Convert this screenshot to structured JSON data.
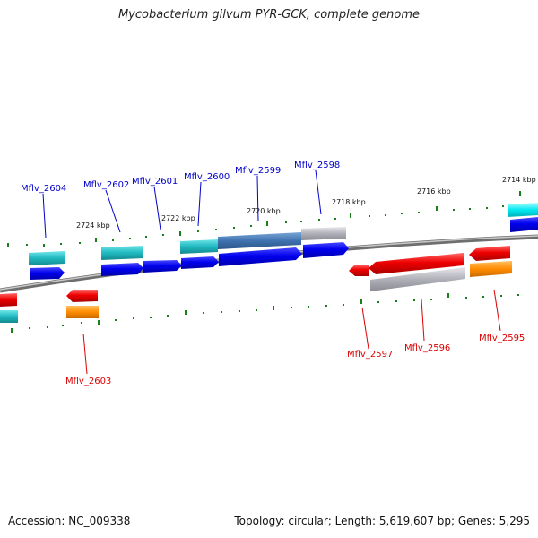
{
  "header": {
    "title": "Mycobacterium gilvum PYR-GCK, complete genome"
  },
  "footer": {
    "accession": "Accession: NC_009338",
    "topology": "Topology: circular; Length: 5,619,607 bp; Genes: 5,295"
  },
  "ticks": [
    {
      "label": "2724 kbp"
    },
    {
      "label": "2722 kbp"
    },
    {
      "label": "2720 kbp"
    },
    {
      "label": "2718 kbp"
    },
    {
      "label": "2716 kbp"
    },
    {
      "label": "2714 kbp"
    }
  ],
  "genes_forward": [
    {
      "label": "Mflv_2604"
    },
    {
      "label": "Mflv_2602"
    },
    {
      "label": "Mflv_2601"
    },
    {
      "label": "Mflv_2600"
    },
    {
      "label": "Mflv_2599"
    },
    {
      "label": "Mflv_2598"
    }
  ],
  "genes_reverse": [
    {
      "label": "Mflv_2603"
    },
    {
      "label": "Mflv_2597"
    },
    {
      "label": "Mflv_2596"
    },
    {
      "label": "Mflv_2595"
    }
  ],
  "colors": {
    "forward_label": "#0000cc",
    "reverse_label": "#dd0000",
    "cds_forward": "#0000ee",
    "cds_reverse": "#ee0000",
    "gene_teal": "#20b8c0",
    "gene_orange": "#ff8c00",
    "gene_gray": "#b0b0b8",
    "tick": "#1a7f1a",
    "backbone": "#888888"
  }
}
